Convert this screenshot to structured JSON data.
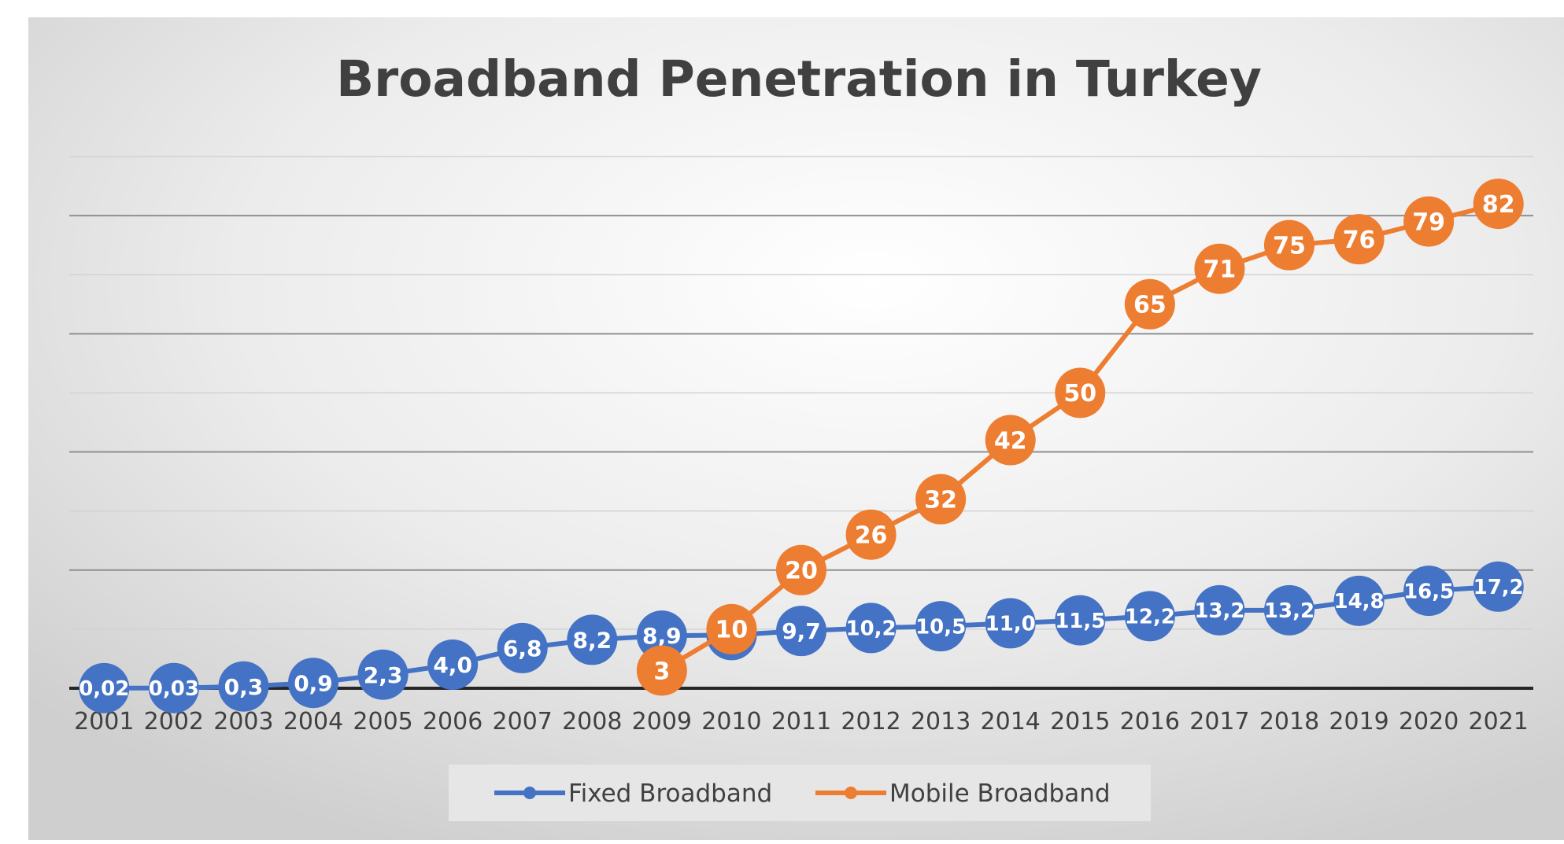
{
  "chart_data": {
    "type": "line",
    "title": "Broadband Penetration in Turkey",
    "xlabel": "",
    "ylabel": "",
    "categories": [
      "2001",
      "2002",
      "2003",
      "2004",
      "2005",
      "2006",
      "2007",
      "2008",
      "2009",
      "2010",
      "2011",
      "2012",
      "2013",
      "2014",
      "2015",
      "2016",
      "2017",
      "2018",
      "2019",
      "2020",
      "2021"
    ],
    "ylim": [
      0,
      90
    ],
    "grid": true,
    "legend_position": "bottom",
    "series": [
      {
        "name": "Fixed Broadband",
        "color": "#4472C4",
        "values": [
          0.02,
          0.03,
          0.3,
          0.9,
          2.3,
          4.0,
          6.8,
          8.2,
          8.9,
          9.0,
          9.7,
          10.2,
          10.5,
          11.0,
          11.5,
          12.2,
          13.2,
          13.2,
          14.8,
          16.5,
          17.2
        ],
        "labels": [
          "0,02",
          "0,03",
          "0,3",
          "0,9",
          "2,3",
          "4,0",
          "6,8",
          "8,2",
          "8,9",
          "9,0",
          "9,7",
          "10,2",
          "10,5",
          "11,0",
          "11,5",
          "12,2",
          "13,2",
          "13,2",
          "14,8",
          "16,5",
          "17,2"
        ]
      },
      {
        "name": "Mobile Broadband",
        "color": "#ED7D31",
        "values": [
          null,
          null,
          null,
          null,
          null,
          null,
          null,
          null,
          3,
          10,
          20,
          26,
          32,
          42,
          50,
          65,
          71,
          75,
          76,
          79,
          82
        ],
        "labels": [
          null,
          null,
          null,
          null,
          null,
          null,
          null,
          null,
          "3",
          "10",
          "20",
          "26",
          "32",
          "42",
          "50",
          "65",
          "71",
          "75",
          "76",
          "79",
          "82"
        ]
      }
    ]
  }
}
